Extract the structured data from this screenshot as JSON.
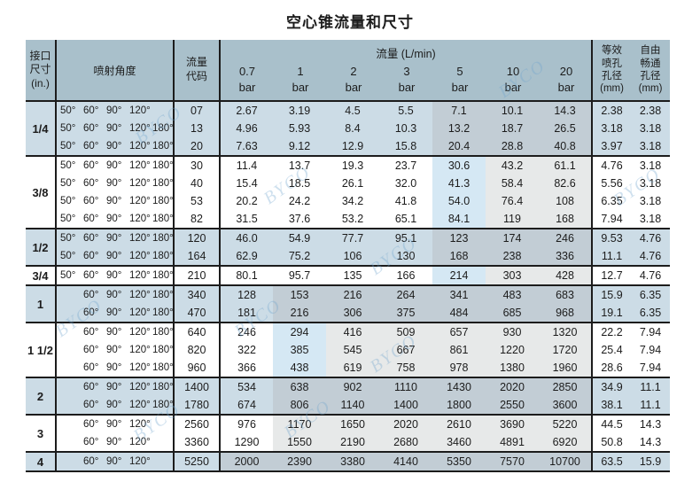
{
  "title": "空心锥流量和尺寸",
  "watermark_text": "BYCO",
  "colors": {
    "header_bg": "#a9c0cb",
    "row_blue": "#ccdce6",
    "row_white": "#ffffff",
    "shade_on_blue": "#c2cdd5",
    "shade_gray": "#e7e9e9",
    "shade_blue": "#d5e8f4",
    "border": "#1c1c1c"
  },
  "header": {
    "size_lines": [
      "接口",
      "尺寸",
      "(in.)"
    ],
    "angle": "喷射角度",
    "code_lines": [
      "流量",
      "代码"
    ],
    "flow_group": "流量 (L/min)",
    "pressures": [
      "0.7",
      "1",
      "2",
      "3",
      "5",
      "10",
      "20"
    ],
    "pressure_unit": "bar",
    "orifice_lines": [
      "等效",
      "喷孔",
      "孔径",
      "(mm)"
    ],
    "passage_lines": [
      "自由",
      "畅通",
      "孔径",
      "(mm)"
    ]
  },
  "groups": [
    {
      "size": "1/4",
      "tone": "blue",
      "shade_from": 4,
      "first_blue": false,
      "rows": [
        {
          "angles": [
            "50°",
            "60°",
            "90°",
            "120°",
            ""
          ],
          "code": "07",
          "flows": [
            "2.67",
            "3.19",
            "4.5",
            "5.5",
            "7.1",
            "10.1",
            "14.3"
          ],
          "orifice": "2.38",
          "passage": "2.38"
        },
        {
          "angles": [
            "50°",
            "60°",
            "90°",
            "120°",
            "180°"
          ],
          "code": "13",
          "flows": [
            "4.96",
            "5.93",
            "8.4",
            "10.3",
            "13.2",
            "18.7",
            "26.5"
          ],
          "orifice": "3.18",
          "passage": "3.18"
        },
        {
          "angles": [
            "50°",
            "60°",
            "90°",
            "120°",
            "180°"
          ],
          "code": "20",
          "flows": [
            "7.63",
            "9.12",
            "12.9",
            "15.8",
            "20.4",
            "28.8",
            "40.8"
          ],
          "orifice": "3.97",
          "passage": "3.18"
        }
      ]
    },
    {
      "size": "3/8",
      "tone": "white",
      "shade_from": 4,
      "first_blue": true,
      "rows": [
        {
          "angles": [
            "50°",
            "60°",
            "90°",
            "120°",
            "180°"
          ],
          "code": "30",
          "flows": [
            "11.4",
            "13.7",
            "19.3",
            "23.7",
            "30.6",
            "43.2",
            "61.1"
          ],
          "orifice": "4.76",
          "passage": "3.18"
        },
        {
          "angles": [
            "50°",
            "60°",
            "90°",
            "120°",
            "180°"
          ],
          "code": "40",
          "flows": [
            "15.4",
            "18.5",
            "26.1",
            "32.0",
            "41.3",
            "58.4",
            "82.6"
          ],
          "orifice": "5.56",
          "passage": "3.18"
        },
        {
          "angles": [
            "50°",
            "60°",
            "90°",
            "120°",
            "180°"
          ],
          "code": "53",
          "flows": [
            "20.2",
            "24.2",
            "34.2",
            "41.8",
            "54.0",
            "76.4",
            "108"
          ],
          "orifice": "6.35",
          "passage": "3.18"
        },
        {
          "angles": [
            "50°",
            "60°",
            "90°",
            "120°",
            "180°"
          ],
          "code": "82",
          "flows": [
            "31.5",
            "37.6",
            "53.2",
            "65.1",
            "84.1",
            "119",
            "168"
          ],
          "orifice": "7.94",
          "passage": "3.18"
        }
      ]
    },
    {
      "size": "1/2",
      "tone": "blue",
      "shade_from": 4,
      "first_blue": false,
      "rows": [
        {
          "angles": [
            "50°",
            "60°",
            "90°",
            "120°",
            "180°"
          ],
          "code": "120",
          "flows": [
            "46.0",
            "54.9",
            "77.7",
            "95.1",
            "123",
            "174",
            "246"
          ],
          "orifice": "9.53",
          "passage": "4.76"
        },
        {
          "angles": [
            "50°",
            "60°",
            "90°",
            "120°",
            "180°"
          ],
          "code": "164",
          "flows": [
            "62.9",
            "75.2",
            "106",
            "130",
            "168",
            "238",
            "336"
          ],
          "orifice": "11.1",
          "passage": "4.76"
        }
      ]
    },
    {
      "size": "3/4",
      "tone": "white",
      "shade_from": 4,
      "first_blue": true,
      "rows": [
        {
          "angles": [
            "50°",
            "60°",
            "90°",
            "120°",
            "180°"
          ],
          "code": "210",
          "flows": [
            "80.1",
            "95.7",
            "135",
            "166",
            "214",
            "303",
            "428"
          ],
          "orifice": "12.7",
          "passage": "4.76"
        }
      ]
    },
    {
      "size": "1",
      "tone": "blue",
      "shade_from": 1,
      "first_blue": false,
      "rows": [
        {
          "angles": [
            "",
            "60°",
            "90°",
            "120°",
            "180°"
          ],
          "code": "340",
          "flows": [
            "128",
            "153",
            "216",
            "264",
            "341",
            "483",
            "683"
          ],
          "orifice": "15.9",
          "passage": "6.35"
        },
        {
          "angles": [
            "",
            "60°",
            "90°",
            "120°",
            "180°"
          ],
          "code": "470",
          "flows": [
            "181",
            "216",
            "306",
            "375",
            "484",
            "685",
            "968"
          ],
          "orifice": "19.1",
          "passage": "6.35"
        }
      ]
    },
    {
      "size": "1 1/2",
      "tone": "white",
      "shade_from": 1,
      "first_blue": true,
      "rows": [
        {
          "angles": [
            "",
            "60°",
            "90°",
            "120°",
            "180°"
          ],
          "code": "640",
          "flows": [
            "246",
            "294",
            "416",
            "509",
            "657",
            "930",
            "1320"
          ],
          "orifice": "22.2",
          "passage": "7.94"
        },
        {
          "angles": [
            "",
            "60°",
            "90°",
            "120°",
            "180°"
          ],
          "code": "820",
          "flows": [
            "322",
            "385",
            "545",
            "667",
            "861",
            "1220",
            "1720"
          ],
          "orifice": "25.4",
          "passage": "7.94"
        },
        {
          "angles": [
            "",
            "60°",
            "90°",
            "120°",
            "180°"
          ],
          "code": "960",
          "flows": [
            "366",
            "438",
            "619",
            "758",
            "978",
            "1380",
            "1960"
          ],
          "orifice": "28.6",
          "passage": "7.94"
        }
      ]
    },
    {
      "size": "2",
      "tone": "blue",
      "shade_from": 1,
      "first_blue": false,
      "rows": [
        {
          "angles": [
            "",
            "60°",
            "90°",
            "120°",
            "180°"
          ],
          "code": "1400",
          "flows": [
            "534",
            "638",
            "902",
            "1110",
            "1430",
            "2020",
            "2850"
          ],
          "orifice": "34.9",
          "passage": "11.1"
        },
        {
          "angles": [
            "",
            "60°",
            "90°",
            "120°",
            "180°"
          ],
          "code": "1780",
          "flows": [
            "674",
            "806",
            "1140",
            "1400",
            "1800",
            "2550",
            "3600"
          ],
          "orifice": "38.1",
          "passage": "11.1"
        }
      ]
    },
    {
      "size": "3",
      "tone": "white",
      "shade_from": 1,
      "first_blue": false,
      "rows": [
        {
          "angles": [
            "",
            "60°",
            "90°",
            "120°",
            ""
          ],
          "code": "2560",
          "flows": [
            "976",
            "1170",
            "1650",
            "2020",
            "2610",
            "3690",
            "5220"
          ],
          "orifice": "44.5",
          "passage": "14.3"
        },
        {
          "angles": [
            "",
            "60°",
            "90°",
            "120°",
            ""
          ],
          "code": "3360",
          "flows": [
            "1290",
            "1550",
            "2190",
            "2680",
            "3460",
            "4891",
            "6920"
          ],
          "orifice": "50.8",
          "passage": "14.3"
        }
      ]
    },
    {
      "size": "4",
      "tone": "blue",
      "shade_from": 0,
      "first_blue": false,
      "rows": [
        {
          "angles": [
            "",
            "60°",
            "90°",
            "120°",
            ""
          ],
          "code": "5250",
          "flows": [
            "2000",
            "2390",
            "3380",
            "4140",
            "5350",
            "7570",
            "10700"
          ],
          "orifice": "63.5",
          "passage": "15.9"
        }
      ]
    }
  ]
}
